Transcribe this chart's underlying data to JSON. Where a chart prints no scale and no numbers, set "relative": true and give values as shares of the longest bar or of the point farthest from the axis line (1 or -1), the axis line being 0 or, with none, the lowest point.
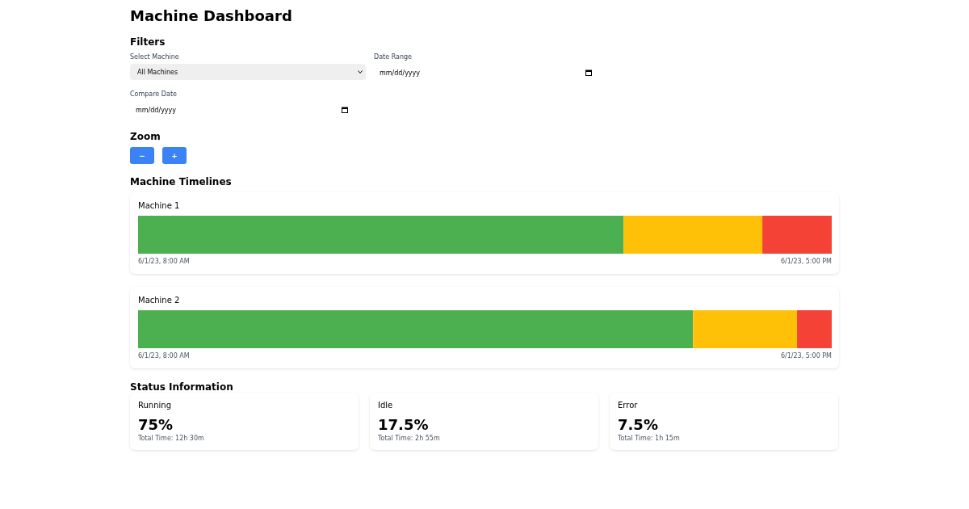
{
  "chart_data": [
    {
      "type": "other",
      "title": "Machine Dashboard",
      "annotations": [
        "Filters",
        "Select Machine",
        "All Machines",
        "Date Range",
        "mm/dd/yyyy",
        "Compare Date",
        "mm/dd/yyyy",
        "Zoom",
        "−",
        "+",
        "Machine Timelines"
      ]
    },
    {
      "type": "bar",
      "title": "Machine 1",
      "orientation": "horizontal",
      "stacked": true,
      "relative": true,
      "categories": [
        null
      ],
      "series": [
        {
          "color": "#4caf50",
          "values": [
            0.7
          ]
        },
        {
          "color": "#ffc107",
          "values": [
            0.2
          ]
        },
        {
          "color": "#f44336",
          "values": [
            0.1
          ]
        }
      ],
      "annotations": [
        "6/1/23, 8:00 AM",
        "6/1/23, 5:00 PM"
      ]
    },
    {
      "type": "bar",
      "title": "Machine 2",
      "orientation": "horizontal",
      "stacked": true,
      "relative": true,
      "categories": [
        null
      ],
      "series": [
        {
          "color": "#4caf50",
          "values": [
            0.8
          ]
        },
        {
          "color": "#ffc107",
          "values": [
            0.15
          ]
        },
        {
          "color": "#f44336",
          "values": [
            0.05
          ]
        }
      ],
      "annotations": [
        "6/1/23, 8:00 AM",
        "6/1/23, 5:00 PM"
      ]
    },
    {
      "type": "other",
      "title": "Status Information",
      "annotations": [
        "Running",
        "75%",
        "Total Time: 12h 30m",
        "Idle",
        "17.5%",
        "Total Time: 2h 55m",
        "Error",
        "7.5%",
        "Total Time: 1h 15m"
      ]
    }
  ]
}
